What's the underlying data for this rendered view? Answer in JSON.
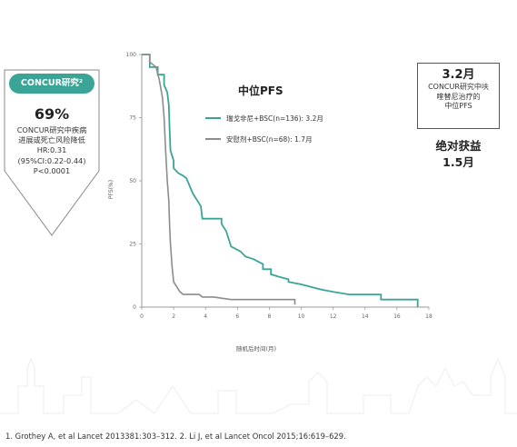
{
  "badge": {
    "title": "CONCUR研究²",
    "percent": "69%",
    "lines": [
      "CONCUR研究中疾病",
      "进展或死亡风险降低",
      "HR:0.31",
      "(95%CI:0.22-0.44)",
      "P<0.0001"
    ],
    "color": "#3aa597"
  },
  "info_box": {
    "big": "3.2月",
    "small_lines": [
      "CONCUR研究中呋",
      "喹替尼治疗的",
      "中位PFS"
    ]
  },
  "absolute_gain": [
    "绝对获益",
    "1.5月"
  ],
  "footnote": "1. Grothey A, et al Lancet 2013381:303–312. 2. Li J, et al Lancet Oncol 2015;16:619–629.",
  "chart_data": {
    "type": "line",
    "title": "中位PFS",
    "xlabel": "随机后时间(月)",
    "ylabel": "PFS(%)",
    "xlim": [
      0,
      18
    ],
    "ylim": [
      0,
      100
    ],
    "x_ticks": [
      "0",
      "2",
      "4",
      "6",
      "8",
      "10",
      "12",
      "14",
      "16",
      "18"
    ],
    "y_ticks": [
      "0",
      "25",
      "50",
      "75",
      "100"
    ],
    "legend_position": "top-right",
    "series": [
      {
        "name": "瑞戈非尼+BSC(n=136): 3.2月",
        "color": "#3aa597",
        "points": [
          [
            0,
            100
          ],
          [
            0.5,
            100
          ],
          [
            0.5,
            95
          ],
          [
            1,
            95
          ],
          [
            1,
            92
          ],
          [
            1.4,
            92
          ],
          [
            1.4,
            88
          ],
          [
            1.6,
            85
          ],
          [
            1.7,
            80
          ],
          [
            1.75,
            70
          ],
          [
            1.8,
            62
          ],
          [
            2,
            58
          ],
          [
            2,
            55
          ],
          [
            2.3,
            53
          ],
          [
            2.6,
            52
          ],
          [
            2.8,
            51
          ],
          [
            3,
            48
          ],
          [
            3.2,
            45
          ],
          [
            3.5,
            42
          ],
          [
            3.7,
            40
          ],
          [
            3.8,
            35
          ],
          [
            4.5,
            35
          ],
          [
            5,
            35
          ],
          [
            5,
            33
          ],
          [
            5.3,
            30
          ],
          [
            5.6,
            24
          ],
          [
            5.9,
            23
          ],
          [
            6.2,
            22
          ],
          [
            6.5,
            20
          ],
          [
            7,
            19
          ],
          [
            7.6,
            17
          ],
          [
            7.6,
            15
          ],
          [
            8.1,
            15
          ],
          [
            8.1,
            13
          ],
          [
            8.6,
            12
          ],
          [
            9.2,
            11
          ],
          [
            9.2,
            10
          ],
          [
            10,
            9
          ],
          [
            10.6,
            8
          ],
          [
            11.2,
            7
          ],
          [
            12,
            6
          ],
          [
            13,
            5
          ],
          [
            15,
            5
          ],
          [
            15,
            3
          ],
          [
            17.3,
            3
          ],
          [
            17.3,
            0
          ]
        ]
      },
      {
        "name": "安慰剂+BSC(n=68): 1.7月",
        "color": "#8c8c8c",
        "points": [
          [
            0,
            100
          ],
          [
            0.5,
            100
          ],
          [
            0.5,
            97
          ],
          [
            0.9,
            95
          ],
          [
            1.1,
            90
          ],
          [
            1.3,
            83
          ],
          [
            1.4,
            75
          ],
          [
            1.5,
            62
          ],
          [
            1.6,
            50
          ],
          [
            1.7,
            42
          ],
          [
            1.75,
            32
          ],
          [
            1.8,
            25
          ],
          [
            1.9,
            16
          ],
          [
            2,
            10
          ],
          [
            2.2,
            8
          ],
          [
            2.4,
            6
          ],
          [
            2.6,
            5
          ],
          [
            3.6,
            5
          ],
          [
            3.8,
            4
          ],
          [
            4.5,
            4
          ],
          [
            5.6,
            3
          ],
          [
            8,
            3
          ],
          [
            9.6,
            3
          ],
          [
            9.6,
            1
          ]
        ]
      }
    ]
  }
}
